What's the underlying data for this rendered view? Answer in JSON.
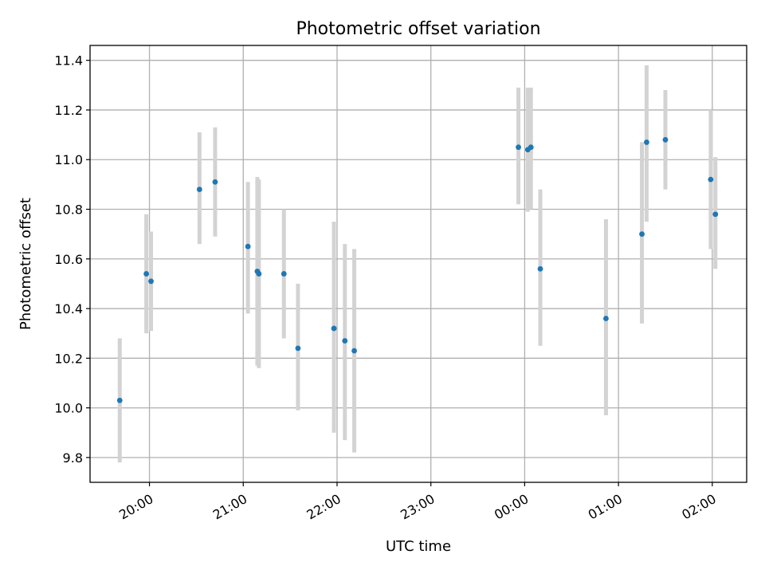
{
  "chart_data": {
    "type": "scatter",
    "title": "Photometric offset variation",
    "xlabel": "UTC time",
    "ylabel": "Photometric offset",
    "ylim": [
      9.7,
      11.46
    ],
    "xlim": [
      "19:22",
      "02:22"
    ],
    "grid": true,
    "x_ticks": [
      "20:00",
      "21:00",
      "22:00",
      "23:00",
      "00:00",
      "01:00",
      "02:00"
    ],
    "y_ticks": [
      "9.8",
      "10.0",
      "10.2",
      "10.4",
      "10.6",
      "10.8",
      "11.0",
      "11.2",
      "11.4"
    ],
    "y_tick_values": [
      9.8,
      10.0,
      10.2,
      10.4,
      10.6,
      10.8,
      11.0,
      11.2,
      11.4
    ],
    "point_color": "#1f77b4",
    "errorbar_color": "#d3d3d3",
    "points": [
      {
        "t": "19:41",
        "y": 10.03,
        "lo": 9.78,
        "hi": 10.28
      },
      {
        "t": "19:58",
        "y": 10.54,
        "lo": 10.3,
        "hi": 10.78
      },
      {
        "t": "20:01",
        "y": 10.51,
        "lo": 10.31,
        "hi": 10.71
      },
      {
        "t": "20:32",
        "y": 10.88,
        "lo": 10.66,
        "hi": 11.11
      },
      {
        "t": "20:42",
        "y": 10.91,
        "lo": 10.69,
        "hi": 11.13
      },
      {
        "t": "21:03",
        "y": 10.65,
        "lo": 10.38,
        "hi": 10.91
      },
      {
        "t": "21:09",
        "y": 10.55,
        "lo": 10.17,
        "hi": 10.93
      },
      {
        "t": "21:10",
        "y": 10.54,
        "lo": 10.16,
        "hi": 10.92
      },
      {
        "t": "21:26",
        "y": 10.54,
        "lo": 10.28,
        "hi": 10.8
      },
      {
        "t": "21:35",
        "y": 10.24,
        "lo": 9.99,
        "hi": 10.5
      },
      {
        "t": "21:58",
        "y": 10.32,
        "lo": 9.9,
        "hi": 10.75
      },
      {
        "t": "22:05",
        "y": 10.27,
        "lo": 9.87,
        "hi": 10.66
      },
      {
        "t": "22:11",
        "y": 10.23,
        "lo": 9.82,
        "hi": 10.64
      },
      {
        "t": "23:56",
        "y": 11.05,
        "lo": 10.82,
        "hi": 11.29
      },
      {
        "t": "00:02",
        "y": 11.04,
        "lo": 10.79,
        "hi": 11.29
      },
      {
        "t": "00:04",
        "y": 11.05,
        "lo": 10.8,
        "hi": 11.29
      },
      {
        "t": "00:10",
        "y": 10.56,
        "lo": 10.25,
        "hi": 10.88
      },
      {
        "t": "00:52",
        "y": 10.36,
        "lo": 9.97,
        "hi": 10.76
      },
      {
        "t": "01:15",
        "y": 10.7,
        "lo": 10.34,
        "hi": 11.07
      },
      {
        "t": "01:18",
        "y": 11.07,
        "lo": 10.75,
        "hi": 11.38
      },
      {
        "t": "01:30",
        "y": 11.08,
        "lo": 10.88,
        "hi": 11.28
      },
      {
        "t": "01:59",
        "y": 10.92,
        "lo": 10.64,
        "hi": 11.2
      },
      {
        "t": "02:02",
        "y": 10.78,
        "lo": 10.56,
        "hi": 11.01
      }
    ]
  }
}
